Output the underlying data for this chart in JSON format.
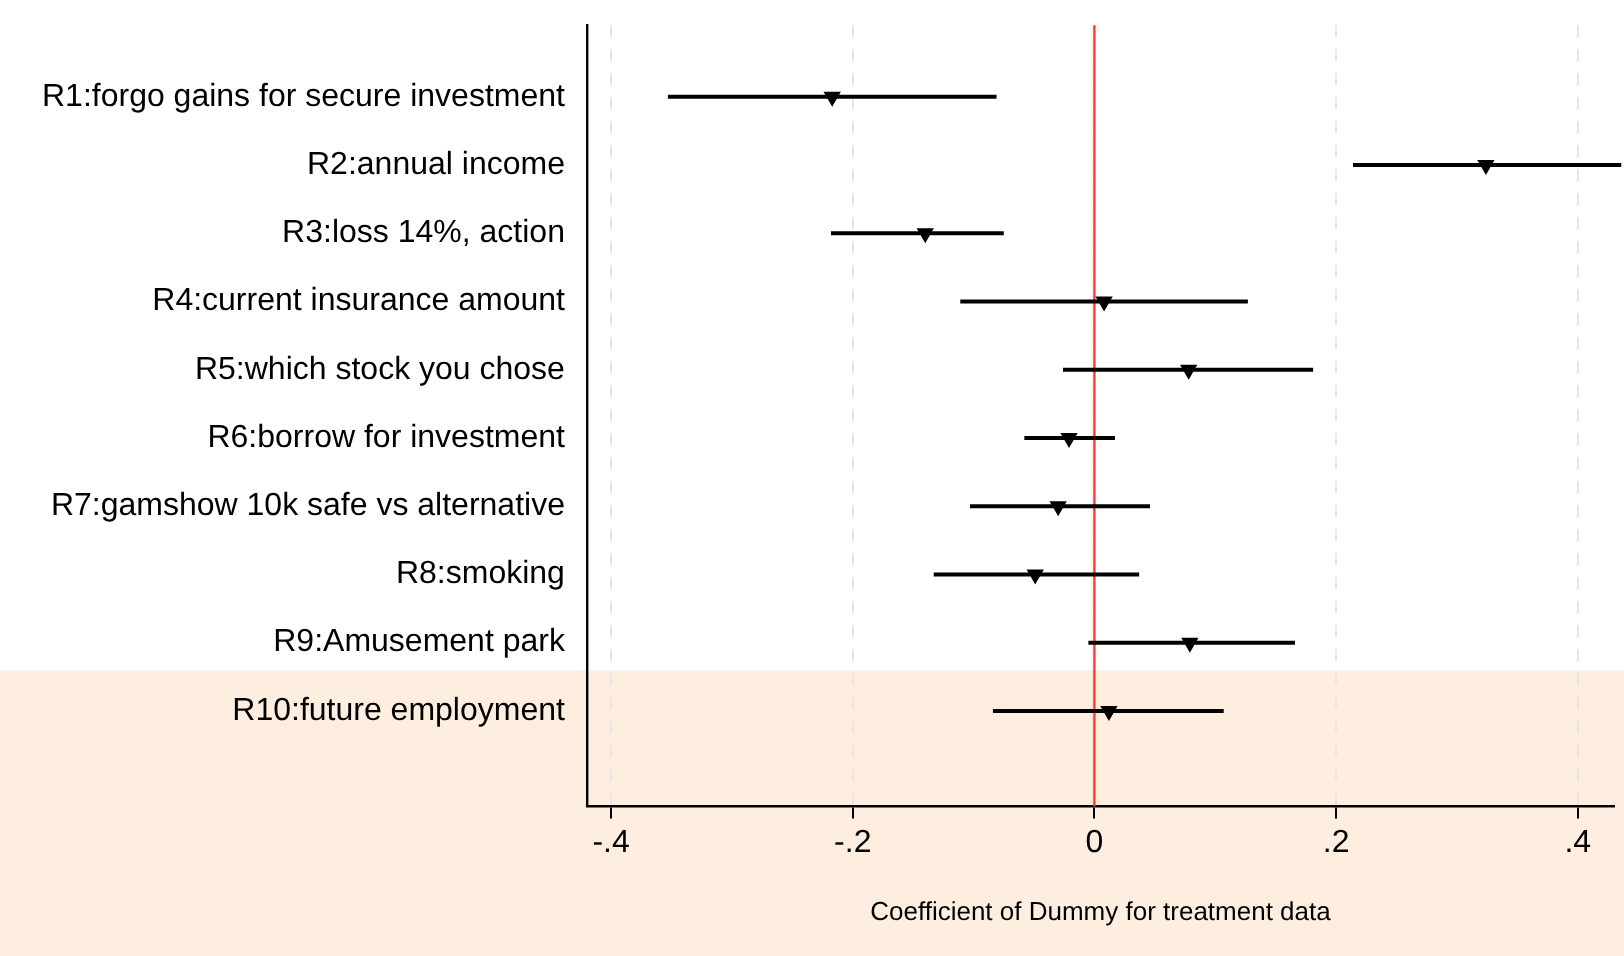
{
  "chart_data": {
    "type": "scatter",
    "orientation": "horizontal",
    "xlabel": "Coefficient of Dummy for treatment data",
    "categories": [
      "R1:forgo gains for secure investment",
      "R2:annual income",
      "R3:loss 14%, action",
      "R4:current insurance amount",
      "R5:which stock you chose",
      "R6:borrow for investment",
      "R7:gamshow 10k safe vs alternative",
      "R8:smoking",
      "R9:Amusement park",
      "R10:future employment"
    ],
    "values": [
      -0.217,
      0.324,
      -0.14,
      0.008,
      0.078,
      -0.021,
      -0.03,
      -0.049,
      0.079,
      0.012
    ],
    "errors": [
      [
        -0.353,
        -0.081
      ],
      [
        0.214,
        0.436
      ],
      [
        -0.218,
        -0.075
      ],
      [
        -0.111,
        0.127
      ],
      [
        -0.026,
        0.181
      ],
      [
        -0.058,
        0.017
      ],
      [
        -0.103,
        0.046
      ],
      [
        -0.133,
        0.037
      ],
      [
        -0.005,
        0.166
      ],
      [
        -0.084,
        0.107
      ]
    ],
    "color": "#000000",
    "marker": "triangle",
    "grid": "x",
    "legend": false,
    "xlim": [
      -0.42,
      0.43
    ],
    "xticks": [
      {
        "value": -0.4,
        "label": "-.4"
      },
      {
        "value": -0.2,
        "label": "-.2"
      },
      0,
      {
        "value": 0.2,
        "label": ".2"
      },
      {
        "value": 0.4,
        "label": ".4"
      }
    ],
    "ref_lines": [
      {
        "axis": "x",
        "value": 0,
        "color": "#ff3b30"
      }
    ]
  }
}
